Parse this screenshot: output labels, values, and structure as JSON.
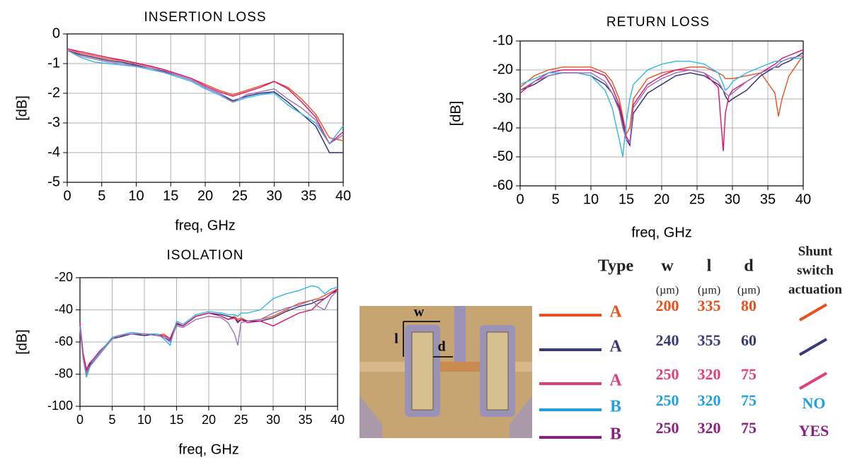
{
  "chart_data": [
    {
      "type": "line",
      "title": "INSERTION LOSS",
      "x_label": "freq, GHz",
      "y_label": "[dB]",
      "x": [
        0,
        2,
        4,
        6,
        8,
        10,
        12,
        14,
        16,
        18,
        20,
        22,
        24,
        26,
        28,
        30,
        32,
        34,
        36,
        38,
        40
      ],
      "xlim": [
        0,
        40
      ],
      "ylim": [
        -5,
        0
      ],
      "xticks": [
        0,
        5,
        10,
        15,
        20,
        25,
        30,
        35,
        40
      ],
      "yticks": [
        -5,
        -4,
        -3,
        -2,
        -1,
        0
      ],
      "grid": true,
      "series": [
        {
          "color": "#e8501e",
          "values": [
            -0.5,
            -0.65,
            -0.75,
            -0.85,
            -0.9,
            -1.0,
            -1.1,
            -1.2,
            -1.35,
            -1.5,
            -1.7,
            -1.9,
            -2.05,
            -1.9,
            -1.75,
            -1.6,
            -1.8,
            -2.2,
            -2.7,
            -3.5,
            -3.6
          ]
        },
        {
          "color": "#2a2a7a",
          "values": [
            -0.55,
            -0.7,
            -0.8,
            -0.9,
            -0.95,
            -1.05,
            -1.15,
            -1.25,
            -1.4,
            -1.55,
            -1.8,
            -2.0,
            -2.25,
            -2.1,
            -2.0,
            -1.95,
            -2.3,
            -2.7,
            -3.1,
            -4.0,
            -4.0
          ]
        },
        {
          "color": "#e0106e",
          "values": [
            -0.5,
            -0.6,
            -0.7,
            -0.8,
            -0.88,
            -0.98,
            -1.08,
            -1.2,
            -1.35,
            -1.5,
            -1.75,
            -1.95,
            -2.1,
            -1.95,
            -1.8,
            -1.6,
            -1.85,
            -2.3,
            -2.8,
            -3.7,
            -3.3
          ]
        },
        {
          "color": "#30b8e8",
          "values": [
            -0.55,
            -0.8,
            -0.95,
            -1.0,
            -1.05,
            -1.1,
            -1.2,
            -1.3,
            -1.45,
            -1.6,
            -1.85,
            -2.05,
            -2.3,
            -2.15,
            -2.05,
            -2.0,
            -2.4,
            -2.7,
            -3.0,
            -3.7,
            -3.1
          ]
        },
        {
          "color": "#9b72b8",
          "values": [
            -0.55,
            -0.75,
            -0.85,
            -0.95,
            -1.0,
            -1.08,
            -1.15,
            -1.28,
            -1.4,
            -1.55,
            -1.8,
            -2.0,
            -2.3,
            -2.05,
            -1.95,
            -1.85,
            -2.2,
            -2.5,
            -2.9,
            -3.7,
            -3.4
          ]
        }
      ]
    },
    {
      "type": "line",
      "title": "RETURN LOSS",
      "x_label": "freq, GHz",
      "y_label": "[dB]",
      "x": [
        0,
        2,
        4,
        6,
        8,
        10,
        12,
        13,
        14,
        14.5,
        15,
        15.5,
        16,
        18,
        20,
        22,
        24,
        26,
        28,
        28.7,
        29,
        29.5,
        30,
        32,
        34,
        36,
        36.5,
        37,
        38,
        40
      ],
      "xlim": [
        0,
        40
      ],
      "ylim": [
        -60,
        -10
      ],
      "xticks": [
        0,
        5,
        10,
        15,
        20,
        25,
        30,
        35,
        40
      ],
      "yticks": [
        -60,
        -50,
        -40,
        -30,
        -20,
        -10
      ],
      "grid": true,
      "series": [
        {
          "color": "#e8501e",
          "values": [
            -26,
            -22,
            -20,
            -19,
            -19,
            -19,
            -21,
            -24,
            -30,
            -36,
            -42,
            -40,
            -30,
            -23,
            -21,
            -20,
            -19,
            -19,
            -21,
            -22,
            -23,
            -23,
            -23,
            -22,
            -21,
            -28,
            -36,
            -30,
            -22,
            -15
          ]
        },
        {
          "color": "#2a2a7a",
          "values": [
            -27,
            -25,
            -22,
            -21,
            -21,
            -22,
            -25,
            -28,
            -33,
            -38,
            -44,
            -46,
            -35,
            -28,
            -25,
            -22,
            -21,
            -22,
            -25,
            -27,
            -29,
            -31,
            -30,
            -27,
            -22,
            -19,
            -19,
            -18,
            -17,
            -14
          ]
        },
        {
          "color": "#e0106e",
          "values": [
            -28,
            -24,
            -21,
            -20,
            -20,
            -20,
            -22,
            -26,
            -32,
            -37,
            -43,
            -45,
            -32,
            -25,
            -22,
            -20,
            -20,
            -21,
            -26,
            -48,
            -35,
            -29,
            -27,
            -24,
            -21,
            -18,
            -17,
            -16,
            -15,
            -13
          ]
        },
        {
          "color": "#30b8e8",
          "values": [
            -25,
            -23,
            -21,
            -21,
            -21,
            -22,
            -27,
            -33,
            -44,
            -50,
            -38,
            -30,
            -25,
            -20,
            -18,
            -17,
            -17,
            -18,
            -21,
            -25,
            -27,
            -26,
            -24,
            -21,
            -19,
            -17,
            -17,
            -17,
            -16,
            -16
          ]
        },
        {
          "color": "#9b72b8",
          "values": [
            -27,
            -24,
            -22,
            -21,
            -21,
            -21,
            -24,
            -28,
            -34,
            -40,
            -44,
            -45,
            -33,
            -26,
            -23,
            -21,
            -20,
            -21,
            -24,
            -27,
            -28,
            -29,
            -28,
            -24,
            -21,
            -19,
            -18,
            -17,
            -16,
            -15
          ]
        }
      ]
    },
    {
      "type": "line",
      "title": "ISOLATION",
      "x_label": "freq, GHz",
      "y_label": "[dB]",
      "x": [
        0,
        0.5,
        1,
        1.5,
        2,
        3,
        4,
        5,
        6,
        8,
        10,
        12,
        13,
        14,
        15,
        16,
        18,
        20,
        22,
        23,
        24,
        24.5,
        25,
        26,
        28,
        30,
        32,
        34,
        36,
        37,
        38,
        39,
        40
      ],
      "xlim": [
        0,
        40
      ],
      "ylim": [
        -100,
        -20
      ],
      "xticks": [
        0,
        5,
        10,
        15,
        20,
        25,
        30,
        35,
        40
      ],
      "yticks": [
        -100,
        -80,
        -60,
        -40,
        -20
      ],
      "grid": true,
      "series": [
        {
          "color": "#e8501e",
          "values": [
            -50,
            -68,
            -78,
            -75,
            -72,
            -66,
            -62,
            -58,
            -56,
            -55,
            -55,
            -56,
            -55,
            -58,
            -48,
            -50,
            -44,
            -42,
            -44,
            -46,
            -44,
            -46,
            -45,
            -47,
            -46,
            -44,
            -40,
            -36,
            -34,
            -33,
            -31,
            -29,
            -27
          ]
        },
        {
          "color": "#2a2a7a",
          "values": [
            -50,
            -70,
            -80,
            -74,
            -72,
            -67,
            -63,
            -58,
            -57,
            -55,
            -56,
            -55,
            -57,
            -59,
            -49,
            -50,
            -44,
            -42,
            -43,
            -44,
            -45,
            -48,
            -46,
            -47,
            -47,
            -45,
            -41,
            -38,
            -36,
            -34,
            -33,
            -30,
            -28
          ]
        },
        {
          "color": "#e0106e",
          "values": [
            -48,
            -67,
            -77,
            -73,
            -71,
            -66,
            -62,
            -58,
            -56,
            -55,
            -55,
            -56,
            -56,
            -58,
            -48,
            -50,
            -44,
            -42,
            -44,
            -46,
            -45,
            -47,
            -46,
            -48,
            -47,
            -50,
            -46,
            -42,
            -40,
            -36,
            -33,
            -30,
            -27
          ]
        },
        {
          "color": "#30b8e8",
          "values": [
            -50,
            -70,
            -82,
            -76,
            -72,
            -67,
            -62,
            -57,
            -56,
            -54,
            -55,
            -55,
            -58,
            -62,
            -47,
            -49,
            -43,
            -41,
            -42,
            -43,
            -43,
            -44,
            -42,
            -42,
            -40,
            -33,
            -30,
            -28,
            -25,
            -26,
            -30,
            -27,
            -26
          ]
        },
        {
          "color": "#9b72b8",
          "values": [
            -52,
            -70,
            -80,
            -75,
            -73,
            -68,
            -63,
            -58,
            -56,
            -55,
            -55,
            -56,
            -57,
            -60,
            -50,
            -51,
            -46,
            -44,
            -45,
            -48,
            -55,
            -62,
            -48,
            -47,
            -46,
            -42,
            -39,
            -37,
            -34,
            -38,
            -40,
            -32,
            -28
          ]
        }
      ]
    }
  ],
  "photo": {
    "labels": [
      "w",
      "l",
      "d"
    ]
  },
  "table": {
    "header": [
      "Type",
      "w",
      "l",
      "d"
    ],
    "units": [
      "(µm)",
      "(µm)",
      "(µm)"
    ],
    "actuation_header": [
      "Shunt",
      "switch",
      "actuation"
    ],
    "rows": [
      {
        "type": "A",
        "w": 200,
        "l": 335,
        "d": 80,
        "color": "#e8501e"
      },
      {
        "type": "A",
        "w": 240,
        "l": 355,
        "d": 60,
        "color": "#3a3a7a"
      },
      {
        "type": "A",
        "w": 250,
        "l": 320,
        "d": 75,
        "color": "#e0407a"
      },
      {
        "type": "B",
        "w": 250,
        "l": 320,
        "d": 75,
        "color": "#20a0e0",
        "actuation": "NO"
      },
      {
        "type": "B",
        "w": 250,
        "l": 320,
        "d": 75,
        "color": "#8b2080",
        "actuation": "YES"
      }
    ]
  }
}
